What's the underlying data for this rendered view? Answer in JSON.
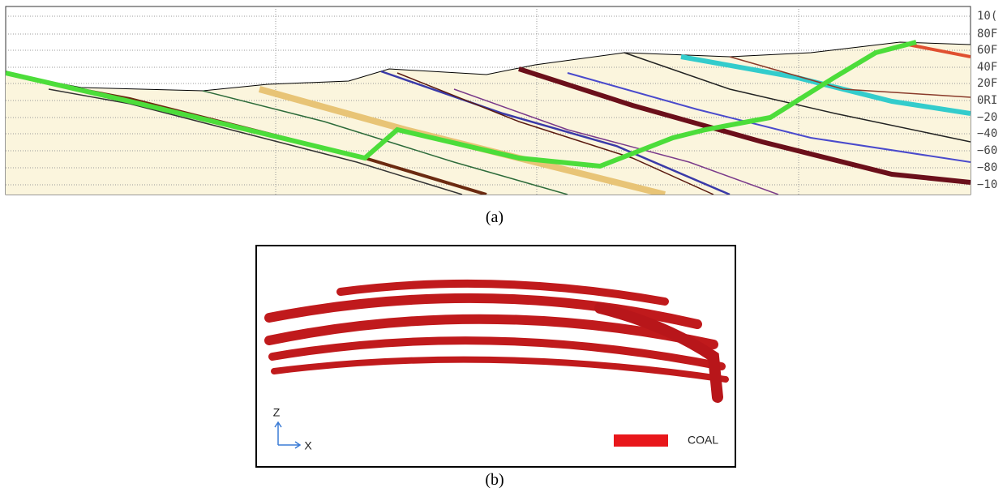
{
  "figure_a": {
    "y_labels": [
      "10(",
      "80F",
      "60F",
      "40F",
      "20F",
      "0RI",
      "−20",
      "−40",
      "−60",
      "−80",
      "−10"
    ],
    "caption": "(a)"
  },
  "figure_b": {
    "axis_z": "Z",
    "axis_x": "X",
    "legend": "COAL",
    "caption": "(b)"
  }
}
